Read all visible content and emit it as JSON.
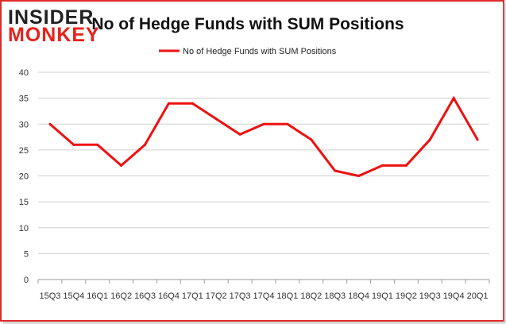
{
  "logo": {
    "line1": "INSIDER",
    "line2": "MONKEY"
  },
  "colors": {
    "series": "#ee1111",
    "logo_dark": "#222222",
    "logo_accent": "#e8211b",
    "grid": "#cfcfcf",
    "border": "#dd2a2a"
  },
  "chart_data": {
    "type": "line",
    "title": "No of Hedge Funds with SUM Positions",
    "xlabel": "",
    "ylabel": "",
    "ylim": [
      0,
      40
    ],
    "yticks": [
      0,
      5,
      10,
      15,
      20,
      25,
      30,
      35,
      40
    ],
    "grid": true,
    "legend_position": "top-center",
    "categories": [
      "15Q3",
      "15Q4",
      "16Q1",
      "16Q2",
      "16Q3",
      "16Q4",
      "17Q1",
      "17Q2",
      "17Q3",
      "17Q4",
      "18Q1",
      "18Q2",
      "18Q3",
      "18Q4",
      "19Q1",
      "19Q2",
      "19Q3",
      "19Q4",
      "20Q1"
    ],
    "series": [
      {
        "name": "No of Hedge Funds with SUM Positions",
        "values": [
          30,
          26,
          26,
          22,
          26,
          34,
          34,
          31,
          28,
          30,
          30,
          27,
          21,
          20,
          22,
          22,
          27,
          35,
          27
        ]
      }
    ]
  }
}
